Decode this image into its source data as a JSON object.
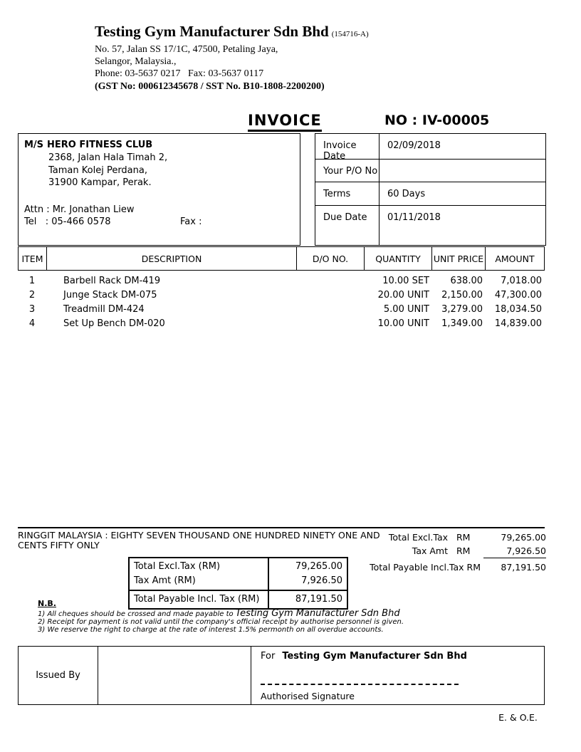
{
  "company": {
    "name": "Testing Gym Manufacturer Sdn Bhd",
    "reg_no": "(154716-A)",
    "address_line1": "No. 57, Jalan SS 17/1C, 47500, Petaling Jaya,",
    "address_line2": "Selangor, Malaysia.,",
    "phone_fax": "Phone: 03-5637 0217   Fax: 03-5637 0117",
    "tax_line": "(GST No: 000612345678 / SST No. B10-1808-2200200)"
  },
  "title": {
    "label": "INVOICE",
    "number": "NO : IV-00005"
  },
  "customer": {
    "ms_label": "M/S",
    "name": "HERO FITNESS CLUB",
    "address1": "2368, Jalan Hala Timah 2,",
    "address2": "Taman Kolej Perdana,",
    "address3": "31900 Kampar, Perak.",
    "attn": "Attn : Mr. Jonathan Liew",
    "tel": "Tel   : 05-466 0578",
    "fax": "Fax :"
  },
  "details": {
    "rows": [
      {
        "label": "Invoice Date",
        "value": "02/09/2018"
      },
      {
        "label": "Your P/O No",
        "value": ""
      },
      {
        "label": "Terms",
        "value": "60 Days"
      },
      {
        "label": "Due Date",
        "value": "01/11/2018"
      }
    ]
  },
  "items": {
    "headers": {
      "item": "ITEM",
      "description": "DESCRIPTION",
      "do_no": "D/O NO.",
      "quantity": "QUANTITY",
      "unit_price": "UNIT PRICE",
      "amount": "AMOUNT"
    },
    "rows": [
      {
        "no": "1",
        "description": "Barbell Rack DM-419",
        "do_no": "",
        "quantity": "10.00 SET",
        "unit_price": "638.00",
        "amount": "7,018.00"
      },
      {
        "no": "2",
        "description": "Junge Stack DM-075",
        "do_no": "",
        "quantity": "20.00 UNIT",
        "unit_price": "2,150.00",
        "amount": "47,300.00"
      },
      {
        "no": "3",
        "description": "Treadmill DM-424",
        "do_no": "",
        "quantity": "5.00 UNIT",
        "unit_price": "3,279.00",
        "amount": "18,034.50"
      },
      {
        "no": "4",
        "description": "Set Up Bench DM-020",
        "do_no": "",
        "quantity": "10.00 UNIT",
        "unit_price": "1,349.00",
        "amount": "14,839.00"
      }
    ]
  },
  "amount_in_words": {
    "line1": "RINGGIT MALAYSIA : EIGHTY SEVEN THOUSAND ONE HUNDRED NINETY ONE AND",
    "line2": "CENTS FIFTY ONLY"
  },
  "summary_right": {
    "row1_label": "Total Excl.Tax",
    "row1_currency": "RM",
    "row1_value": "79,265.00",
    "row2_label": "Tax Amt",
    "row2_currency": "RM",
    "row2_value": "7,926.50",
    "row3_label": "Total Payable Incl.Tax RM",
    "row3_value": "87,191.50"
  },
  "summary_box": {
    "row1_label": "Total Excl.Tax (RM)",
    "row1_value": "79,265.00",
    "row2_label": "Tax Amt (RM)",
    "row2_value": "7,926.50",
    "row3_label": "Total Payable Incl. Tax (RM)",
    "row3_value": "87,191.50"
  },
  "notes": {
    "heading": "N.B.",
    "note1_prefix": "1) All cheques should be crossed and made payable to ",
    "note1_company": "Testing Gym Manufacturer Sdn Bhd",
    "note2": "2) Receipt for payment is not valid until the company's official receipt by authorise personnel is given.",
    "note3": "3) We reserve the right to charge at the rate of interest 1.5% permonth on all overdue accounts."
  },
  "signature": {
    "issued_by": "Issued By",
    "for_label": "For",
    "for_company": "Testing Gym Manufacturer Sdn Bhd",
    "authorised": "Authorised Signature"
  },
  "footer": {
    "eoe": "E. & O.E."
  }
}
